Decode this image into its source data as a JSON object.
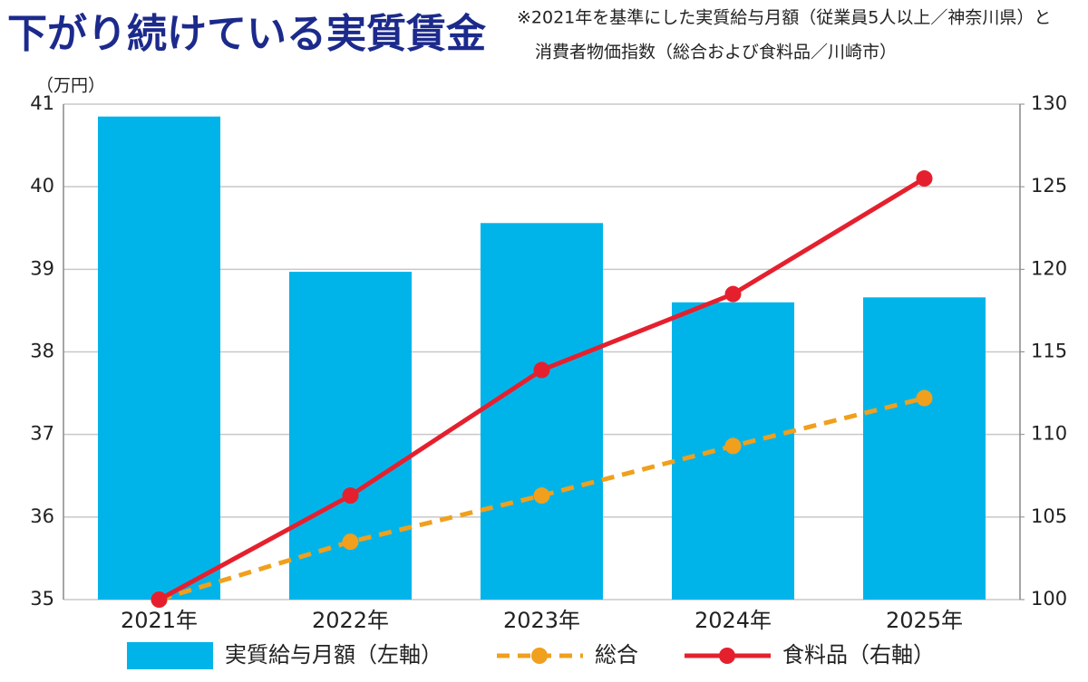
{
  "chart_data": {
    "type": "bar",
    "title": "下がり続けている実質賃金",
    "note": [
      "※2021年を基準にした実質給与月額（従業員5人以上／神奈川県）と",
      "消費者物価指数（総合および食料品／川崎市）"
    ],
    "ylabel": "（万円）",
    "categories": [
      "2021年",
      "2022年",
      "2023年",
      "2024年",
      "2025年"
    ],
    "series": [
      {
        "name": "実質給与月額（左軸）",
        "type": "bar",
        "color": "#00b4ea",
        "values": [
          40.85,
          38.97,
          39.56,
          38.6,
          38.66
        ]
      },
      {
        "name": "総合",
        "type": "line",
        "dashed": true,
        "axis": "y2",
        "color": "#f0a01c",
        "values": [
          100,
          103.5,
          106.3,
          109.3,
          112.2
        ]
      },
      {
        "name": "食料品（右軸）",
        "type": "line",
        "axis": "y2",
        "color": "#e5202e",
        "values": [
          100,
          106.3,
          113.9,
          118.5,
          125.5
        ]
      }
    ],
    "ylim": [
      35,
      41
    ],
    "yticks": [
      35,
      36,
      37,
      38,
      39,
      40,
      41
    ],
    "y2lim": [
      100,
      130
    ],
    "y2ticks": [
      100,
      105,
      110,
      115,
      120,
      125,
      130
    ],
    "grid": true
  }
}
